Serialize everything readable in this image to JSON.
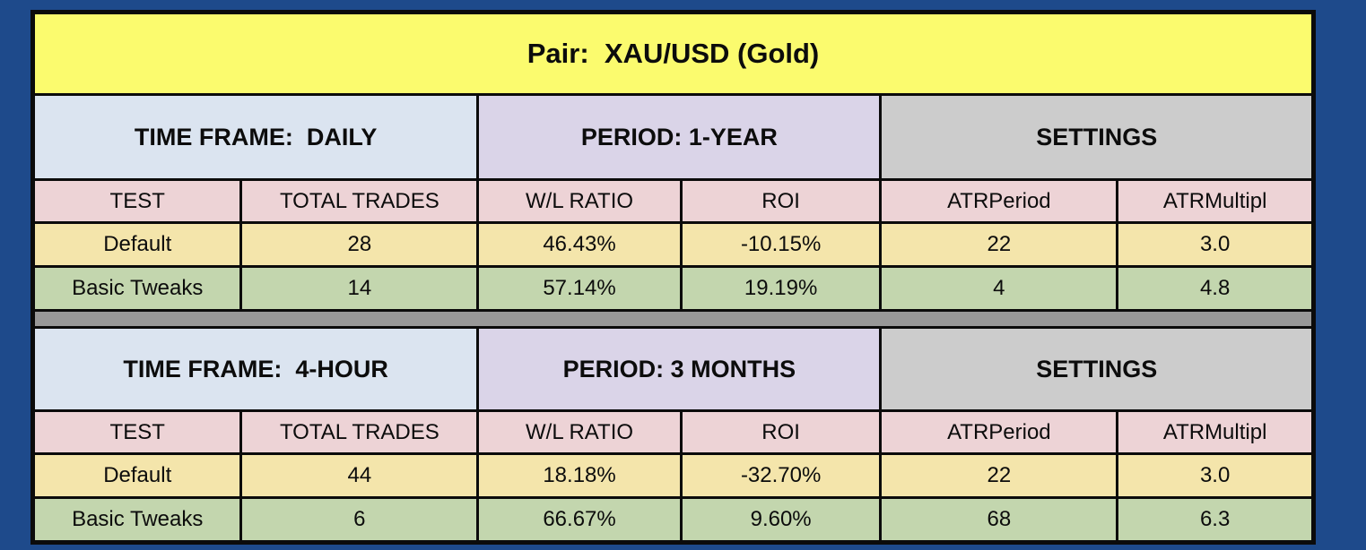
{
  "page": {
    "background": "#1E4A8B"
  },
  "title": {
    "label": "Pair:  XAU/USD (Gold)"
  },
  "columns": [
    "TEST",
    "TOTAL TRADES",
    "W/L RATIO",
    "ROI",
    "ATRPeriod",
    "ATRMultipl"
  ],
  "sections": [
    {
      "time_frame": "TIME FRAME:  DAILY",
      "period": "PERIOD: 1-YEAR",
      "settings": "SETTINGS",
      "rows": [
        {
          "test": "Default",
          "total_trades": "28",
          "wl_ratio": "46.43%",
          "roi": "-10.15%",
          "atr_period": "22",
          "atr_multipl": "3.0"
        },
        {
          "test": "Basic Tweaks",
          "total_trades": "14",
          "wl_ratio": "57.14%",
          "roi": "19.19%",
          "atr_period": "4",
          "atr_multipl": "4.8"
        }
      ]
    },
    {
      "time_frame": "TIME FRAME:  4-HOUR",
      "period": "PERIOD: 3 MONTHS",
      "settings": "SETTINGS",
      "rows": [
        {
          "test": "Default",
          "total_trades": "44",
          "wl_ratio": "18.18%",
          "roi": "-32.70%",
          "atr_period": "22",
          "atr_multipl": "3.0"
        },
        {
          "test": "Basic Tweaks",
          "total_trades": "6",
          "wl_ratio": "66.67%",
          "roi": "9.60%",
          "atr_period": "68",
          "atr_multipl": "6.3"
        }
      ]
    }
  ],
  "colors": {
    "background": "#1E4A8B",
    "title_bg": "#FBFB6E",
    "timeframe_bg": "#DBE4F0",
    "period_bg": "#DAD4E8",
    "settings_bg": "#CCCCCC",
    "column_header_bg": "#EDD3D6",
    "default_row_bg": "#F4E5AB",
    "tweaks_row_bg": "#C3D6AE",
    "separator_bg": "#989898",
    "border": "#0B0B0B",
    "text": "#0C0C0C"
  },
  "chart_data": [
    {
      "type": "table",
      "title": "Pair: XAU/USD (Gold) — TIME FRAME: DAILY, PERIOD: 1-YEAR, SETTINGS",
      "columns": [
        "TEST",
        "TOTAL TRADES",
        "W/L RATIO",
        "ROI",
        "ATRPeriod",
        "ATRMultipl"
      ],
      "rows": [
        [
          "Default",
          28,
          "46.43%",
          "-10.15%",
          22,
          3.0
        ],
        [
          "Basic Tweaks",
          14,
          "57.14%",
          "19.19%",
          4,
          4.8
        ]
      ]
    },
    {
      "type": "table",
      "title": "Pair: XAU/USD (Gold) — TIME FRAME: 4-HOUR, PERIOD: 3 MONTHS, SETTINGS",
      "columns": [
        "TEST",
        "TOTAL TRADES",
        "W/L RATIO",
        "ROI",
        "ATRPeriod",
        "ATRMultipl"
      ],
      "rows": [
        [
          "Default",
          44,
          "18.18%",
          "-32.70%",
          22,
          3.0
        ],
        [
          "Basic Tweaks",
          6,
          "66.67%",
          "9.60%",
          68,
          6.3
        ]
      ]
    }
  ]
}
